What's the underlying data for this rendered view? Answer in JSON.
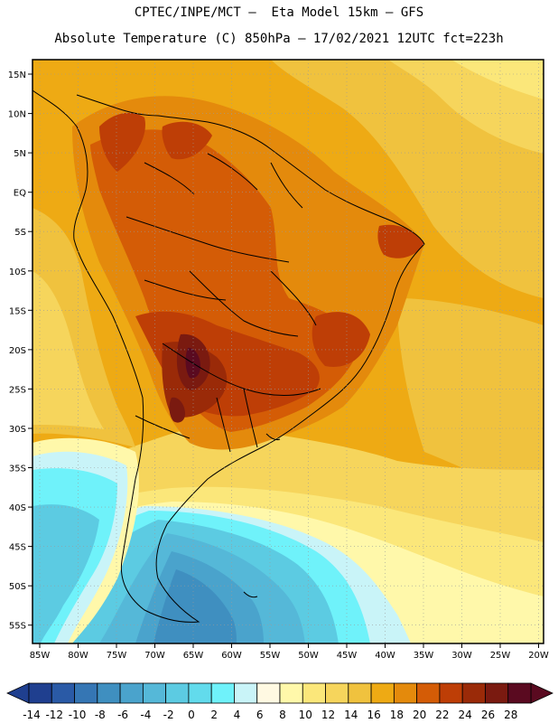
{
  "header": {
    "line1": "CPTEC/INPE/MCT –  Eta Model 15km – GFS",
    "line2": "Absolute Temperature (C) 850hPa – 17/02/2021 12UTC fct=223h"
  },
  "map": {
    "lat_labels": [
      "15N",
      "10N",
      "5N",
      "EQ",
      "5S",
      "10S",
      "15S",
      "20S",
      "25S",
      "30S",
      "35S",
      "40S",
      "45S",
      "50S",
      "55S"
    ],
    "lon_labels": [
      "85W",
      "80W",
      "75W",
      "70W",
      "65W",
      "60W",
      "55W",
      "50W",
      "45W",
      "40W",
      "35W",
      "30W",
      "25W",
      "20W"
    ]
  },
  "colorbar": {
    "labels": [
      "-14",
      "-12",
      "-10",
      "-8",
      "-6",
      "-4",
      "-2",
      "0",
      "2",
      "4",
      "6",
      "8",
      "10",
      "12",
      "14",
      "16",
      "18",
      "20",
      "22",
      "24",
      "26",
      "28"
    ],
    "colors": [
      "#1f3f8f",
      "#2a5aa6",
      "#3576b4",
      "#3f8fc0",
      "#4aa3cc",
      "#55b8d8",
      "#5ccbe2",
      "#62dbec",
      "#6ff2fa",
      "#c9f4f8",
      "#fff9e2",
      "#fff8aa",
      "#fbe77a",
      "#f6d55c",
      "#f0c23e",
      "#eeaa14",
      "#e48a0c",
      "#d45c06",
      "#be3e06",
      "#9a2a08",
      "#7a1a10",
      "#5a0a20"
    ]
  }
}
